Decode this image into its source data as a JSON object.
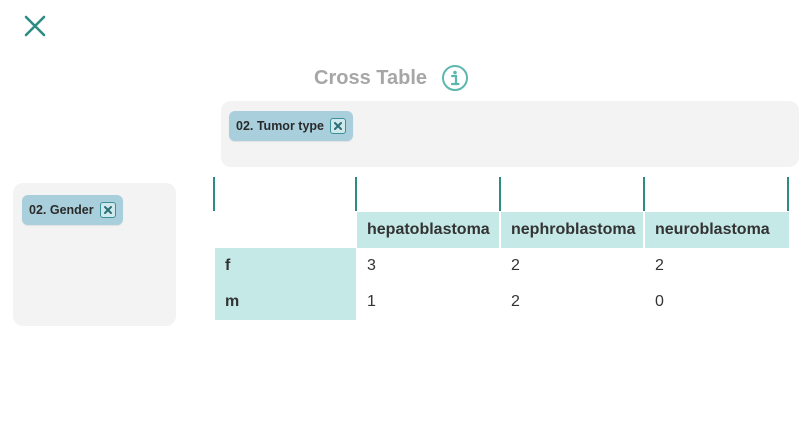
{
  "title": "Cross Table",
  "icons": {
    "close": "close-icon",
    "info": "info-icon",
    "remove": "remove-chip-icon"
  },
  "colors": {
    "accent": "#2c8c84",
    "header_bg": "#c4e9e7",
    "chip_bg": "#a9cfdc",
    "zone_bg": "#f3f3f3",
    "title": "#a6a6a6"
  },
  "column_dimension": {
    "label": "02. Tumor type"
  },
  "row_dimension": {
    "label": "02. Gender"
  },
  "table": {
    "columns": [
      "hepatoblastoma",
      "nephroblastoma",
      "neuroblastoma"
    ],
    "rows": [
      {
        "label": "f",
        "values": [
          "3",
          "2",
          "2"
        ]
      },
      {
        "label": "m",
        "values": [
          "1",
          "2",
          "0"
        ]
      }
    ]
  }
}
